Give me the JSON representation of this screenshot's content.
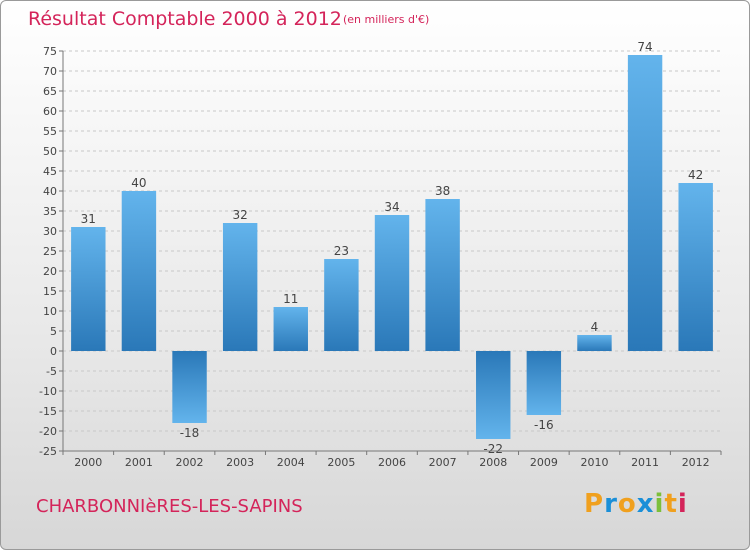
{
  "title": "Résultat Comptable 2000 à 2012",
  "subtitle": "(en milliers d'€)",
  "commune": "CHARBONNIèRES-LES-SAPINS",
  "logo": {
    "text": "Proxiti",
    "letters": [
      "P",
      "r",
      "o",
      "x",
      "i",
      "t",
      "i"
    ],
    "letter_colors": [
      "#f0a01e",
      "#1a8fd8",
      "#f0a01e",
      "#1a8fd8",
      "#7cbf3a",
      "#f0a01e",
      "#d4245a"
    ]
  },
  "colors": {
    "bar_dark": "#2a78b8",
    "bar_light": "#5eb0ea",
    "title": "#d4245a",
    "grid": "#c8c8c8"
  },
  "chart_data": {
    "type": "bar",
    "title": "Résultat Comptable 2000 à 2012",
    "unit_label": "(en milliers d'€)",
    "categories": [
      "2000",
      "2001",
      "2002",
      "2003",
      "2004",
      "2005",
      "2006",
      "2007",
      "2008",
      "2009",
      "2010",
      "2011",
      "2012"
    ],
    "values": [
      31,
      40,
      -18,
      32,
      11,
      23,
      34,
      38,
      -22,
      -16,
      4,
      74,
      42
    ],
    "value_labels": [
      "31",
      "40",
      "-18",
      "32",
      "11",
      "23",
      "34",
      "38",
      "-22",
      "-16",
      "4",
      "74",
      "42"
    ],
    "ylim": [
      -25,
      75
    ],
    "ytick_step": 5,
    "yticks": [
      "-25",
      "-20",
      "-15",
      "-10",
      "-5",
      "0",
      "5",
      "10",
      "15",
      "20",
      "25",
      "30",
      "35",
      "40",
      "45",
      "50",
      "55",
      "60",
      "65",
      "70",
      "75"
    ],
    "grid": true,
    "xlabel": "",
    "ylabel": ""
  }
}
